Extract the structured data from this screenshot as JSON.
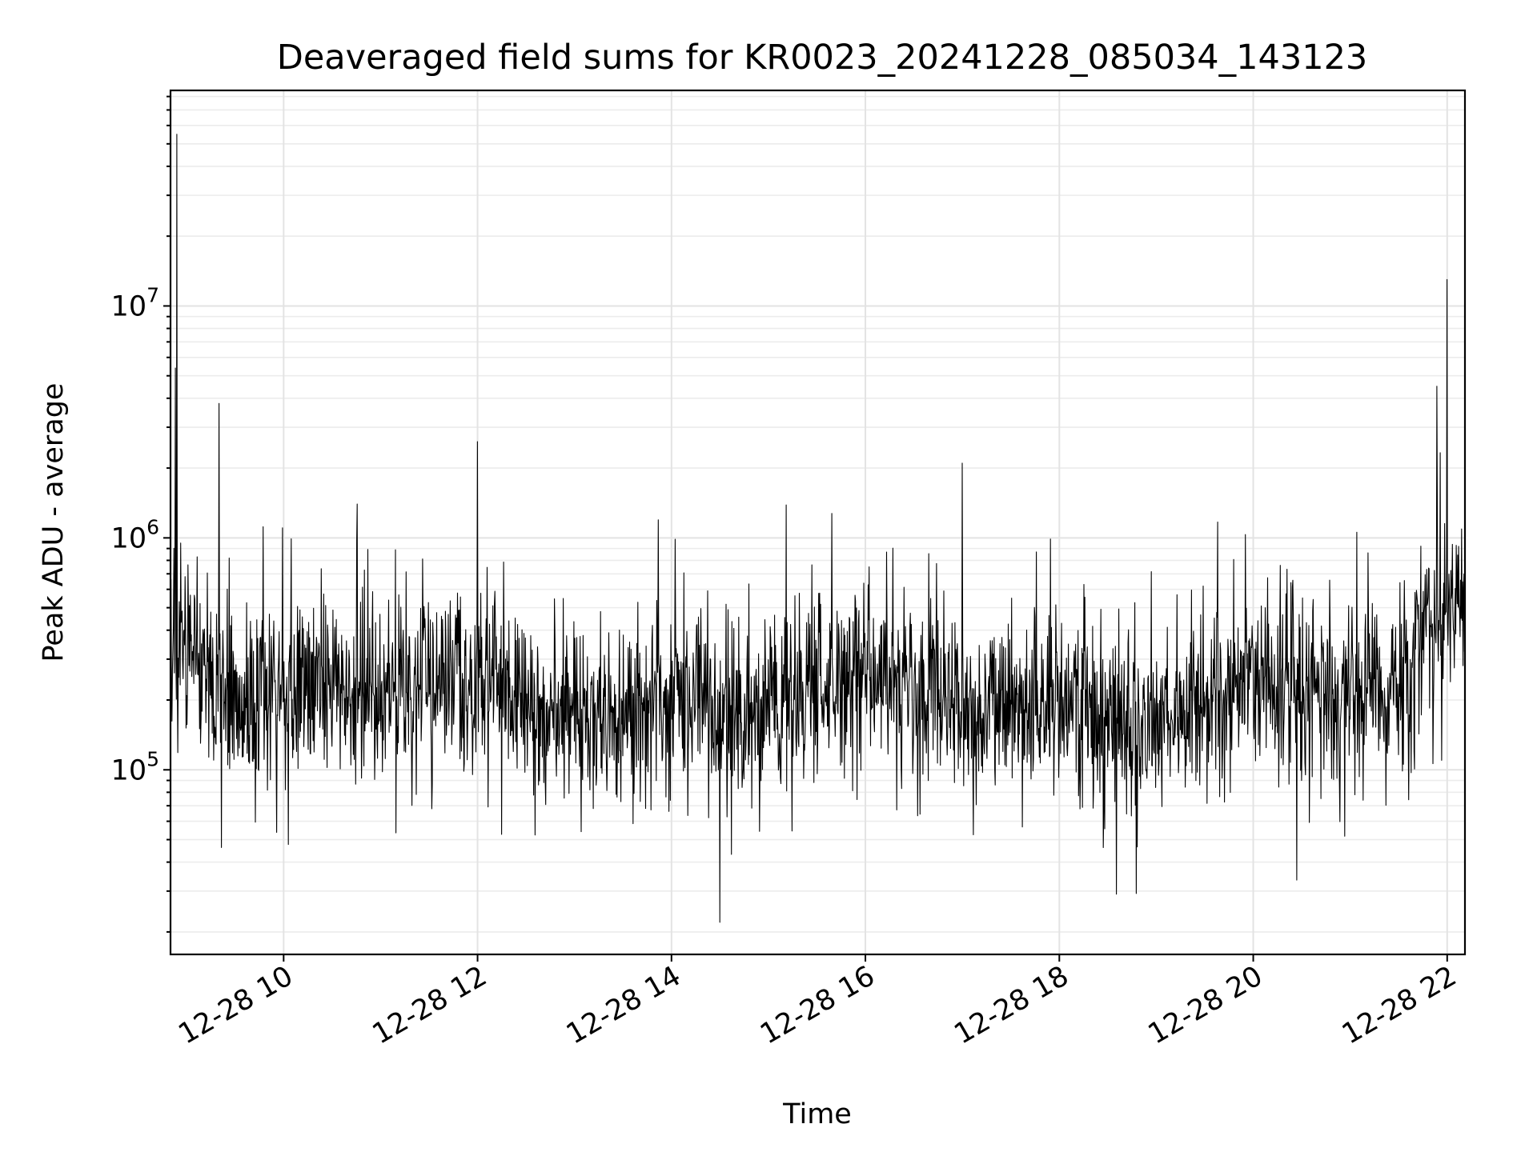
{
  "chart_data": {
    "type": "line",
    "title": "Deaveraged field sums for KR0023_20241228_085034_143123",
    "xlabel": "Time",
    "ylabel": "Peak ADU - average",
    "x_scale": "time",
    "y_scale": "log",
    "grid": "major+minor",
    "legend": "none",
    "line_color": "#000000",
    "xlim": [
      "2024-12-28 08:50",
      "2024-12-28 22:11"
    ],
    "ylim": [
      16000,
      85000000
    ],
    "x_ticks": [
      {
        "value": "2024-12-28 10:00",
        "label": "12-28 10"
      },
      {
        "value": "2024-12-28 12:00",
        "label": "12-28 12"
      },
      {
        "value": "2024-12-28 14:00",
        "label": "12-28 14"
      },
      {
        "value": "2024-12-28 16:00",
        "label": "12-28 16"
      },
      {
        "value": "2024-12-28 18:00",
        "label": "12-28 18"
      },
      {
        "value": "2024-12-28 20:00",
        "label": "12-28 20"
      },
      {
        "value": "2024-12-28 22:00",
        "label": "12-28 22"
      }
    ],
    "y_ticks": [
      {
        "value": 100000,
        "base": "10",
        "exp": "5"
      },
      {
        "value": 1000000,
        "base": "10",
        "exp": "6"
      },
      {
        "value": 10000000,
        "base": "10",
        "exp": "7"
      }
    ],
    "series": [
      {
        "points": [
          [
            "08:50",
            300000
          ],
          [
            "08:53",
            5400000
          ],
          [
            "08:54",
            55000000
          ],
          [
            "08:56",
            280000
          ],
          [
            "09:00",
            700000
          ],
          [
            "09:10",
            400000
          ],
          [
            "09:20",
            3800000
          ],
          [
            "09:30",
            500000
          ],
          [
            "09:40",
            300000
          ],
          [
            "09:55",
            200000
          ],
          [
            "10:00",
            600000
          ],
          [
            "10:30",
            180000
          ],
          [
            "11:00",
            250000
          ],
          [
            "11:30",
            200000
          ],
          [
            "12:00",
            2600000
          ],
          [
            "12:30",
            150000
          ],
          [
            "13:00",
            400000
          ],
          [
            "13:30",
            180000
          ],
          [
            "14:00",
            220000
          ],
          [
            "14:30",
            22000
          ],
          [
            "15:00",
            350000
          ],
          [
            "15:30",
            180000
          ],
          [
            "16:00",
            150000
          ],
          [
            "16:30",
            200000
          ],
          [
            "17:00",
            2100000
          ],
          [
            "17:30",
            250000
          ],
          [
            "18:00",
            200000
          ],
          [
            "18:30",
            220000
          ],
          [
            "19:00",
            300000
          ],
          [
            "19:30",
            250000
          ],
          [
            "20:00",
            150000
          ],
          [
            "20:30",
            200000
          ],
          [
            "21:00",
            300000
          ],
          [
            "21:30",
            250000
          ],
          [
            "21:45",
            600000
          ],
          [
            "22:00",
            13000000
          ],
          [
            "22:05",
            700000
          ],
          [
            "22:11",
            800000
          ]
        ],
        "sampling": "approx. 1 sample per 18 s; dense noisy trace, baseline ~2e5, minima ~2e4, spikes to ~1e6–3e6"
      }
    ]
  }
}
